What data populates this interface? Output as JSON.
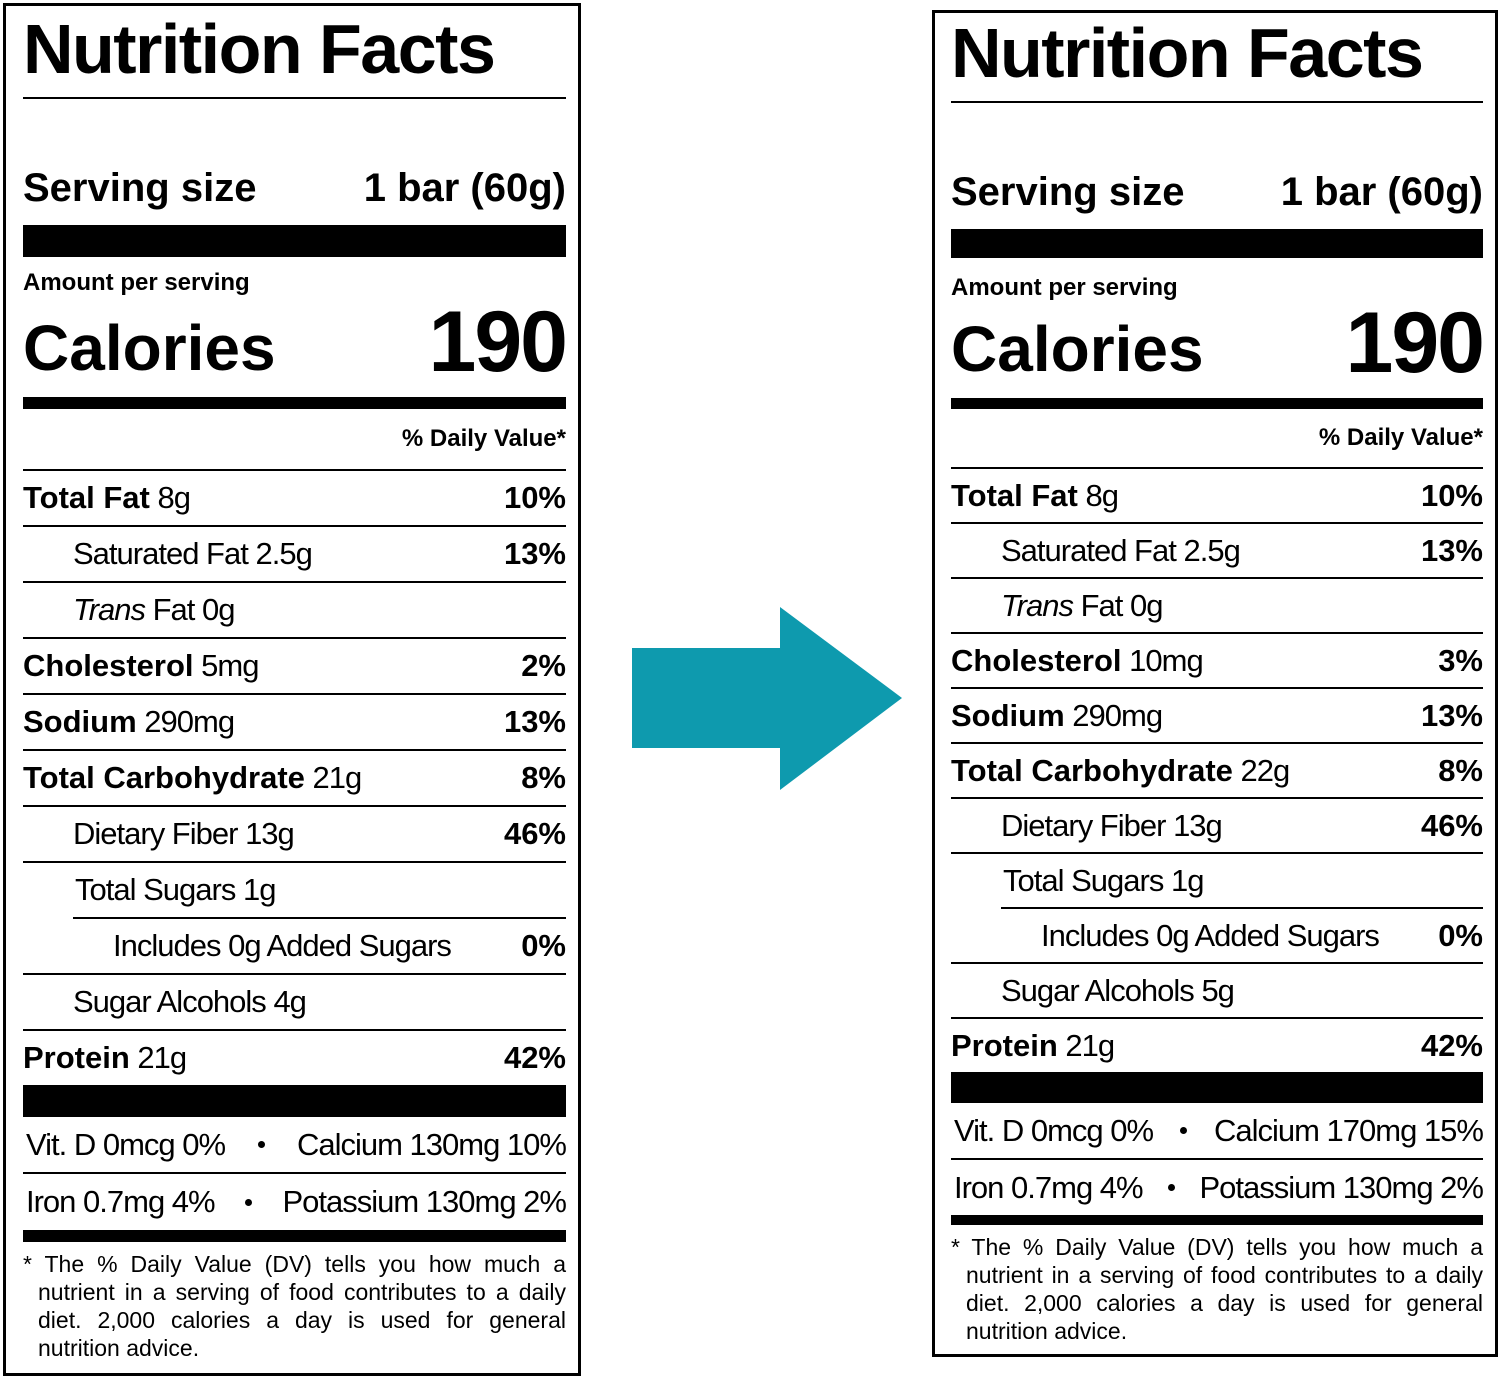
{
  "labels": [
    {
      "title": "Nutrition Facts",
      "serving_label": "Serving size",
      "serving_size": "1 bar (60g)",
      "amount_per_serving": "Amount per serving",
      "calories_label": "Calories",
      "calories": 190,
      "daily_value_header": "% Daily Value*",
      "nutrients": [
        {
          "name": "Total Fat",
          "amount": "8g",
          "dv": "10%"
        },
        {
          "name": "Saturated Fat",
          "amount": "2.5g",
          "dv": "13%"
        },
        {
          "name": "Trans",
          "amount": "Fat 0g"
        },
        {
          "name": "Cholesterol",
          "amount": "5mg",
          "dv": "2%"
        },
        {
          "name": "Sodium",
          "amount": "290mg",
          "dv": "13%"
        },
        {
          "name": "Total Carbohydrate",
          "amount": "21g",
          "dv": "8%"
        },
        {
          "name": "Dietary Fiber",
          "amount": "13g",
          "dv": "46%"
        },
        {
          "name": "Total Sugars",
          "amount": "1g"
        },
        {
          "name": "Includes 0g Added Sugars",
          "dv": "0%"
        },
        {
          "name": "Sugar Alcohols",
          "amount": "4g"
        },
        {
          "name": "Protein",
          "amount": "21g",
          "dv": "42%"
        }
      ],
      "minerals": [
        [
          "Vit. D 0mcg 0%",
          "Calcium 130mg 10%"
        ],
        [
          "Iron 0.7mg 4%",
          "Potassium 130mg 2%"
        ]
      ],
      "footnote": "* The % Daily Value (DV) tells you how much a nutrient in a serving of food contributes to a daily diet. 2,000 calories a day is used for general nutrition advice."
    },
    {
      "title": "Nutrition Facts",
      "serving_label": "Serving size",
      "serving_size": "1 bar (60g)",
      "amount_per_serving": "Amount per serving",
      "calories_label": "Calories",
      "calories": 190,
      "daily_value_header": "% Daily Value*",
      "nutrients": [
        {
          "name": "Total Fat",
          "amount": "8g",
          "dv": "10%"
        },
        {
          "name": "Saturated Fat",
          "amount": "2.5g",
          "dv": "13%"
        },
        {
          "name": "Trans",
          "amount": "Fat 0g"
        },
        {
          "name": "Cholesterol",
          "amount": "10mg",
          "dv": "3%"
        },
        {
          "name": "Sodium",
          "amount": "290mg",
          "dv": "13%"
        },
        {
          "name": "Total Carbohydrate",
          "amount": "22g",
          "dv": "8%"
        },
        {
          "name": "Dietary Fiber",
          "amount": "13g",
          "dv": "46%"
        },
        {
          "name": "Total Sugars",
          "amount": "1g"
        },
        {
          "name": "Includes 0g Added Sugars",
          "dv": "0%"
        },
        {
          "name": "Sugar Alcohols",
          "amount": "5g"
        },
        {
          "name": "Protein",
          "amount": "21g",
          "dv": "42%"
        }
      ],
      "minerals": [
        [
          "Vit. D 0mcg 0%",
          "Calcium 170mg 15%"
        ],
        [
          "Iron 0.7mg 4%",
          "Potassium 130mg 2%"
        ]
      ],
      "footnote": "* The % Daily Value (DV) tells you how much a nutrient in a serving of food contributes to a daily diet. 2,000 calories a day is used for general nutrition advice."
    }
  ]
}
